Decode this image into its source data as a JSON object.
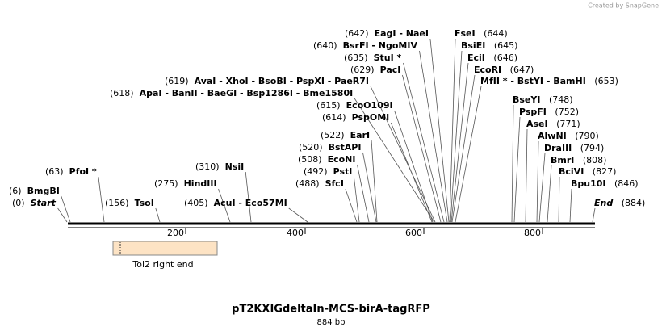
{
  "watermark": "Created by SnapGene",
  "title": "pT2KXIGdeltaIn-MCS-birA-tagRFP",
  "subtitle": "884 bp",
  "ruler": {
    "ticks": [
      "200",
      "400",
      "600",
      "800"
    ]
  },
  "features": [
    {
      "label": "Tol2 right end"
    }
  ],
  "sites": [
    {
      "position": "(642)",
      "names": [
        "EagI",
        "NaeI"
      ]
    },
    {
      "position": "(644)",
      "names": [
        "FseI"
      ]
    },
    {
      "position": "(640)",
      "names": [
        "BsrFI",
        "NgoMIV"
      ]
    },
    {
      "position": "(645)",
      "names": [
        "BsiEI"
      ]
    },
    {
      "position": "(635)",
      "names": [
        "StuI *"
      ]
    },
    {
      "position": "(646)",
      "names": [
        "EciI"
      ]
    },
    {
      "position": "(629)",
      "names": [
        "PacI"
      ]
    },
    {
      "position": "(647)",
      "names": [
        "EcoRI"
      ]
    },
    {
      "position": "(619)",
      "names": [
        "AvaI",
        "XhoI",
        "BsoBI",
        "PspXI",
        "PaeR7I"
      ]
    },
    {
      "position": "(653)",
      "names": [
        "MfII *",
        "BstYI",
        "BamHI"
      ]
    },
    {
      "position": "(618)",
      "names": [
        "ApaI",
        "BanII",
        "BaeGI",
        "Bsp1286I",
        "Bme1580I"
      ]
    },
    {
      "position": "(615)",
      "names": [
        "EcoO109I"
      ]
    },
    {
      "position": "(748)",
      "names": [
        "BseYI"
      ]
    },
    {
      "position": "(752)",
      "names": [
        "PspFI"
      ]
    },
    {
      "position": "(614)",
      "names": [
        "PspOMI"
      ]
    },
    {
      "position": "(771)",
      "names": [
        "AseI"
      ]
    },
    {
      "position": "(522)",
      "names": [
        "EarI"
      ]
    },
    {
      "position": "(790)",
      "names": [
        "AlwNI"
      ]
    },
    {
      "position": "(520)",
      "names": [
        "BstAPI"
      ]
    },
    {
      "position": "(794)",
      "names": [
        "DraIII"
      ]
    },
    {
      "position": "(508)",
      "names": [
        "EcoNI"
      ]
    },
    {
      "position": "(808)",
      "names": [
        "BmrI"
      ]
    },
    {
      "position": "(310)",
      "names": [
        "NsiI"
      ]
    },
    {
      "position": "(63)",
      "names": [
        "PfoI *"
      ]
    },
    {
      "position": "(492)",
      "names": [
        "PstI"
      ]
    },
    {
      "position": "(827)",
      "names": [
        "BciVI"
      ]
    },
    {
      "position": "(275)",
      "names": [
        "HindIII"
      ]
    },
    {
      "position": "(488)",
      "names": [
        "SfcI"
      ]
    },
    {
      "position": "(846)",
      "names": [
        "Bpu10I"
      ]
    },
    {
      "position": "(6)",
      "names": [
        "BmgBI"
      ]
    },
    {
      "position": "(0)",
      "names": [
        "Start"
      ]
    },
    {
      "position": "(156)",
      "names": [
        "TsoI"
      ]
    },
    {
      "position": "(405)",
      "names": [
        "AcuI",
        "Eco57MI"
      ]
    },
    {
      "position": "(884)",
      "names": [
        "End"
      ]
    }
  ]
}
